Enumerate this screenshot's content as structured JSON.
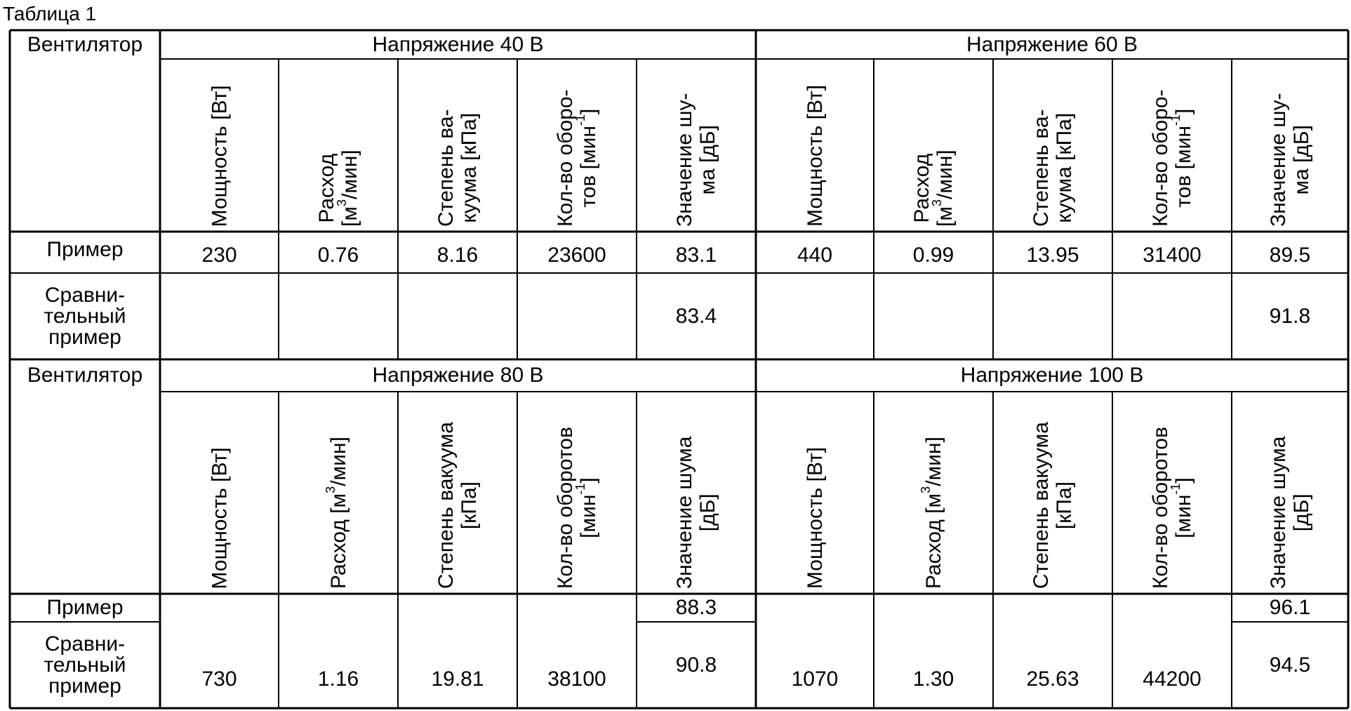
{
  "caption": "Таблица 1",
  "blocks": [
    {
      "corner": "Вентилятор",
      "groups": [
        "Напряжение 40 В",
        "Напряжение 60 В"
      ],
      "headers": [
        {
          "main": "Мощность [Вт]",
          "sup": "",
          "tail": ""
        },
        {
          "main": "Расход\n[м",
          "sup": "3",
          "tail": "/мин]"
        },
        {
          "main": "Степень ва-\nкуума [кПа]",
          "sup": "",
          "tail": ""
        },
        {
          "main": "Кол-во оборо-\nтов [мин",
          "sup": "-1",
          "tail": "]"
        },
        {
          "main": "Значение шу-\nма [дБ]",
          "sup": "",
          "tail": ""
        },
        {
          "main": "Мощность [Вт]",
          "sup": "",
          "tail": ""
        },
        {
          "main": "Расход\n[м",
          "sup": "3",
          "tail": "/мин]"
        },
        {
          "main": "Степень ва-\nкуума [кПа]",
          "sup": "",
          "tail": ""
        },
        {
          "main": "Кол-во оборо-\nтов [мин",
          "sup": "-1",
          "tail": "]"
        },
        {
          "main": "Значение шу-\nма [дБ]",
          "sup": "",
          "tail": ""
        }
      ],
      "row_labels": [
        "Пример",
        "Сравни-\nтельный\nпример"
      ],
      "example": [
        "230",
        "0.76",
        "8.16",
        "23600",
        "83.1",
        "440",
        "0.99",
        "13.95",
        "31400",
        "89.5"
      ],
      "comparative": [
        "",
        "",
        "",
        "",
        "83.4",
        "",
        "",
        "",
        "",
        "91.8"
      ]
    },
    {
      "corner": "Вентилятор",
      "groups": [
        "Напряжение 80 В",
        "Напряжение 100 В"
      ],
      "headers": [
        {
          "main": "Мощность [Вт]",
          "sup": "",
          "tail": ""
        },
        {
          "main": "Расход [м",
          "sup": "3",
          "tail": "/мин]"
        },
        {
          "main": "Степень вакуума\n[кПа]",
          "sup": "",
          "tail": ""
        },
        {
          "main": "Кол-во оборотов\n[мин",
          "sup": "-1",
          "tail": "]"
        },
        {
          "main": "Значение шума\n[дБ]",
          "sup": "",
          "tail": ""
        },
        {
          "main": "Мощность [Вт]",
          "sup": "",
          "tail": ""
        },
        {
          "main": "Расход [м",
          "sup": "3",
          "tail": "/мин]"
        },
        {
          "main": "Степень вакуума\n[кПа]",
          "sup": "",
          "tail": ""
        },
        {
          "main": "Кол-во оборотов\n[мин",
          "sup": "-1",
          "tail": "]"
        },
        {
          "main": "Значение шума\n[дБ]",
          "sup": "",
          "tail": ""
        }
      ],
      "row_labels": [
        "Пример",
        "Сравни-\nтельный\nпример"
      ],
      "shared": [
        "730",
        "1.16",
        "19.81",
        "38100",
        "",
        "1070",
        "1.30",
        "25.63",
        "44200",
        ""
      ],
      "noise_example": [
        "88.3",
        "96.1"
      ],
      "noise_comparative": [
        "90.8",
        "94.5"
      ]
    }
  ]
}
